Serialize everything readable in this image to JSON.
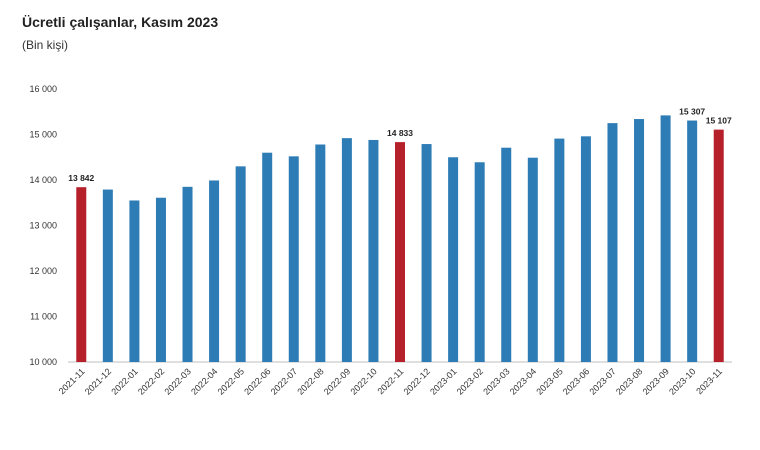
{
  "chart_data": {
    "type": "bar",
    "title": "Ücretli çalışanlar, Kasım 2023",
    "subtitle": "(Bin kişi)",
    "categories": [
      "2021-11",
      "2021-12",
      "2022-01",
      "2022-02",
      "2022-03",
      "2022-04",
      "2022-05",
      "2022-06",
      "2022-07",
      "2022-08",
      "2022-09",
      "2022-10",
      "2022-11",
      "2022-12",
      "2023-01",
      "2023-02",
      "2023-03",
      "2023-04",
      "2023-05",
      "2023-06",
      "2023-07",
      "2023-08",
      "2023-09",
      "2023-10",
      "2023-11"
    ],
    "values": [
      13842,
      13790,
      13550,
      13610,
      13850,
      13990,
      14300,
      14600,
      14520,
      14780,
      14920,
      14880,
      14833,
      14790,
      14500,
      14390,
      14710,
      14490,
      14910,
      14960,
      15250,
      15340,
      15420,
      15307,
      15107
    ],
    "highlighted": [
      "2021-11",
      "2022-11",
      "2023-11"
    ],
    "data_labels": [
      {
        "category": "2021-11",
        "text": "13 842"
      },
      {
        "category": "2022-11",
        "text": "14 833"
      },
      {
        "category": "2023-10",
        "text": "15 307"
      },
      {
        "category": "2023-11",
        "text": "15 107"
      }
    ],
    "y_ticks": [
      "10 000",
      "11 000",
      "12 000",
      "13 000",
      "14 000",
      "15 000",
      "16 000"
    ],
    "ylim": [
      10000,
      16000
    ],
    "grid": false,
    "colors": {
      "bar": "#2E7CB6",
      "highlight": "#B5202B"
    }
  }
}
